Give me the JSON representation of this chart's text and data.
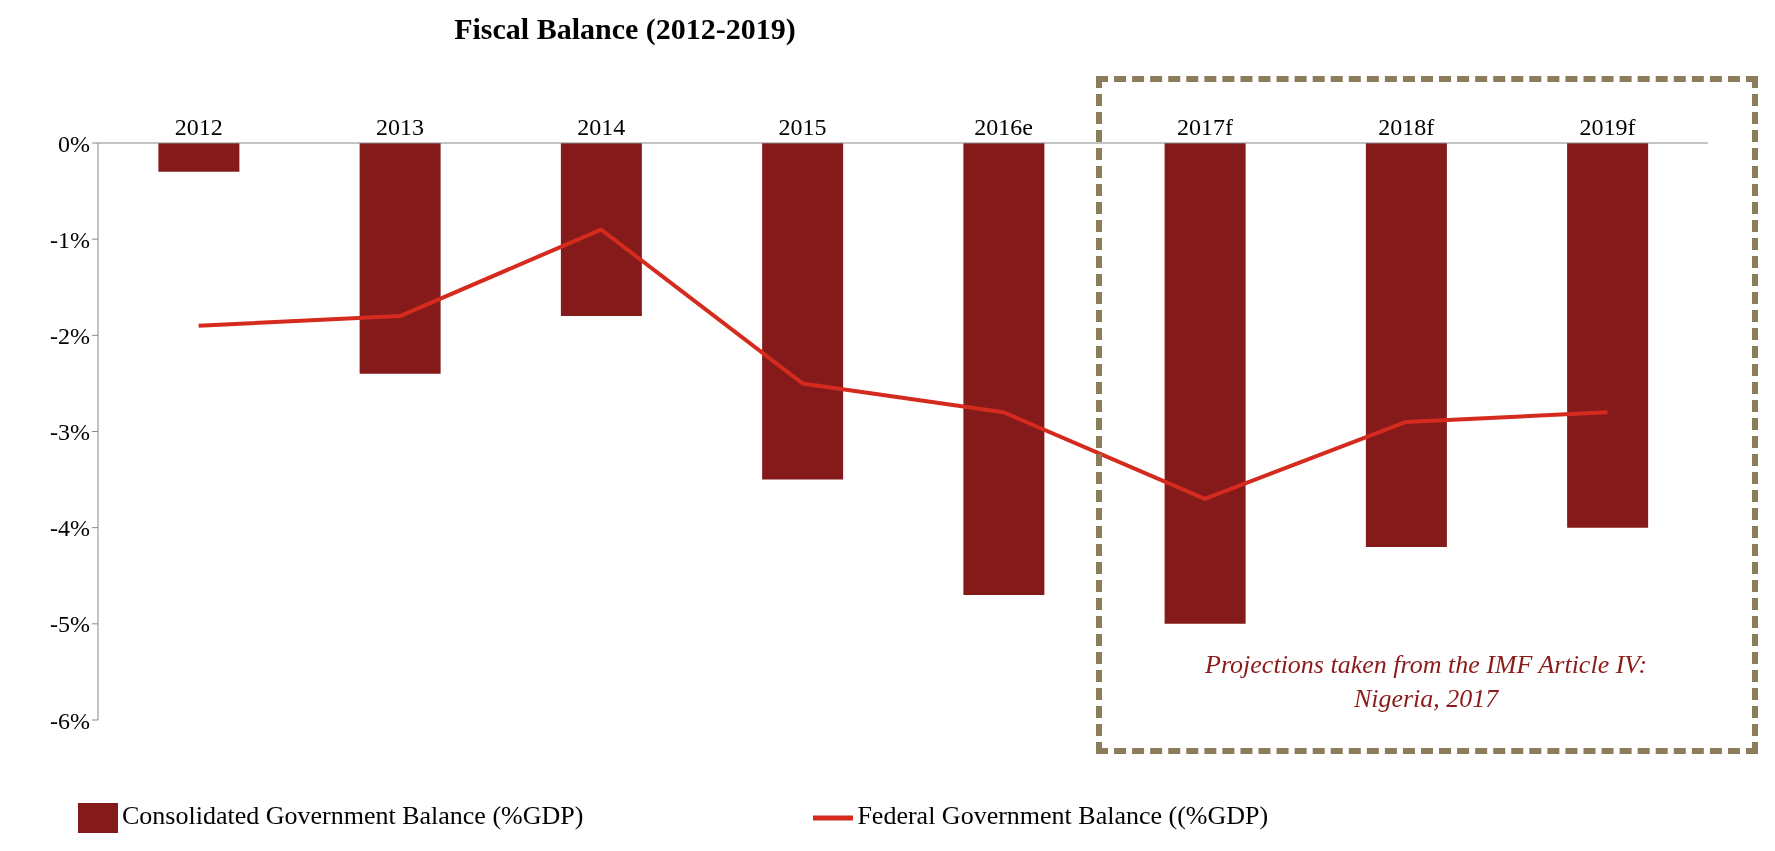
{
  "chart_data": {
    "type": "bar",
    "title": "Fiscal Balance (2012-2019)",
    "categories": [
      "2012",
      "2013",
      "2014",
      "2015",
      "2016e",
      "2017f",
      "2018f",
      "2019f"
    ],
    "series": [
      {
        "name": "Consolidated Government Balance (%GDP)",
        "color": "#841a1a",
        "values": [
          -0.3,
          -2.4,
          -1.8,
          -3.5,
          -4.7,
          -5.0,
          -4.2,
          -4.0
        ]
      },
      {
        "name": "Federal Government Balance ((%GDP)",
        "type": "line",
        "color": "#d52b1e",
        "values": [
          -1.9,
          -1.8,
          -0.9,
          -2.5,
          -2.8,
          -3.7,
          -2.9,
          -2.8
        ]
      }
    ],
    "ylim": [
      -6,
      0
    ],
    "yticks": [
      {
        "value": 0,
        "label": "0%"
      },
      {
        "value": -1,
        "label": "-1%"
      },
      {
        "value": -2,
        "label": "-2%"
      },
      {
        "value": -3,
        "label": "-3%"
      },
      {
        "value": -4,
        "label": "-4%"
      },
      {
        "value": -5,
        "label": "-5%"
      },
      {
        "value": -6,
        "label": "-6%"
      }
    ],
    "annotations": [
      "Projections taken from the IMF Article IV: Nigeria, 2017"
    ],
    "grid": false,
    "legend": "bottom",
    "marker": "none"
  }
}
